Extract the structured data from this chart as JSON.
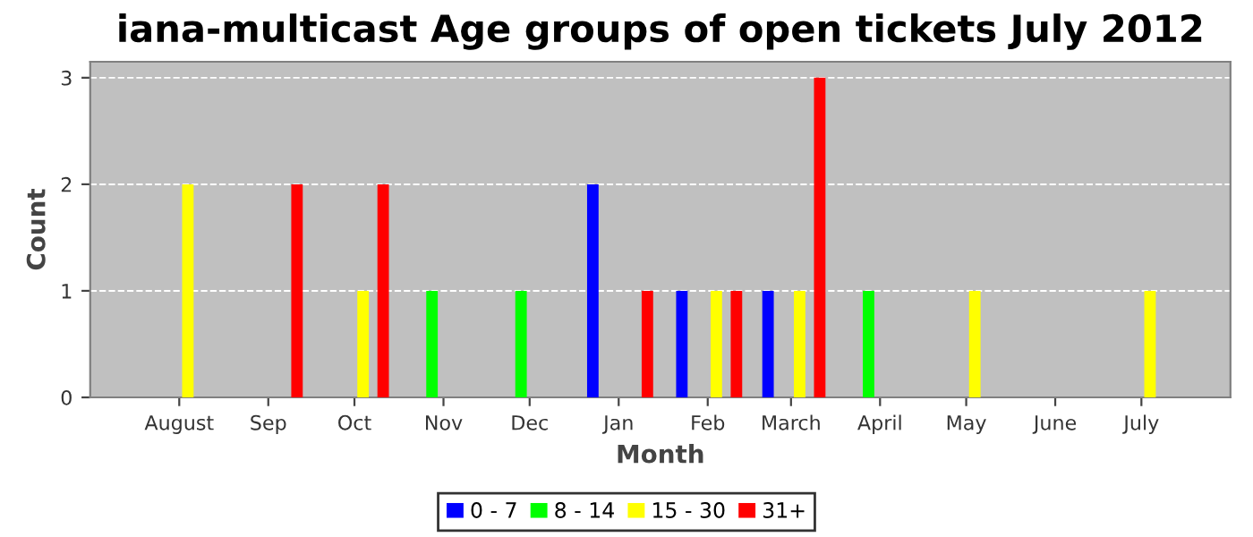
{
  "chart_data": {
    "type": "bar",
    "title": "iana-multicast Age groups of open tickets July 2012",
    "xlabel": "Month",
    "ylabel": "Count",
    "xlim": [
      "2011-07-01",
      "2012-08-01"
    ],
    "xticks": [
      {
        "value": "2011-08-01",
        "label": "August"
      },
      {
        "value": "2011-09-01",
        "label": "Sep"
      },
      {
        "value": "2011-10-01",
        "label": "Oct"
      },
      {
        "value": "2011-11-01",
        "label": "Nov"
      },
      {
        "value": "2011-12-01",
        "label": "Dec"
      },
      {
        "value": "2012-01-01",
        "label": "Jan"
      },
      {
        "value": "2012-02-01",
        "label": "Feb"
      },
      {
        "value": "2012-03-01",
        "label": "March"
      },
      {
        "value": "2012-04-01",
        "label": "April"
      },
      {
        "value": "2012-05-01",
        "label": "May"
      },
      {
        "value": "2012-06-01",
        "label": "June"
      },
      {
        "value": "2012-07-01",
        "label": "July"
      }
    ],
    "ylim": [
      0,
      3.15
    ],
    "yticks": [
      0,
      1,
      2,
      3
    ],
    "grid": "y",
    "legend": "bottom",
    "series": [
      {
        "name": "0 - 7",
        "color": "#0000ff",
        "x": [
          "2011-12-23",
          "2012-01-23",
          "2012-02-22"
        ],
        "values": [
          2,
          1,
          1
        ]
      },
      {
        "name": "8 - 14",
        "color": "#00ff00",
        "x": [
          "2011-10-28",
          "2011-11-28",
          "2012-03-28"
        ],
        "values": [
          1,
          1,
          1
        ]
      },
      {
        "name": "15 - 30",
        "color": "#ffff00",
        "x": [
          "2011-08-04",
          "2011-10-04",
          "2012-02-04",
          "2012-03-04",
          "2012-05-04",
          "2012-07-04"
        ],
        "values": [
          2,
          1,
          1,
          1,
          1,
          1
        ]
      },
      {
        "name": "31+",
        "color": "#ff0000",
        "x": [
          "2011-09-11",
          "2011-10-11",
          "2012-01-11",
          "2012-02-11",
          "2012-03-11"
        ],
        "values": [
          2,
          2,
          1,
          1,
          3
        ]
      }
    ]
  }
}
